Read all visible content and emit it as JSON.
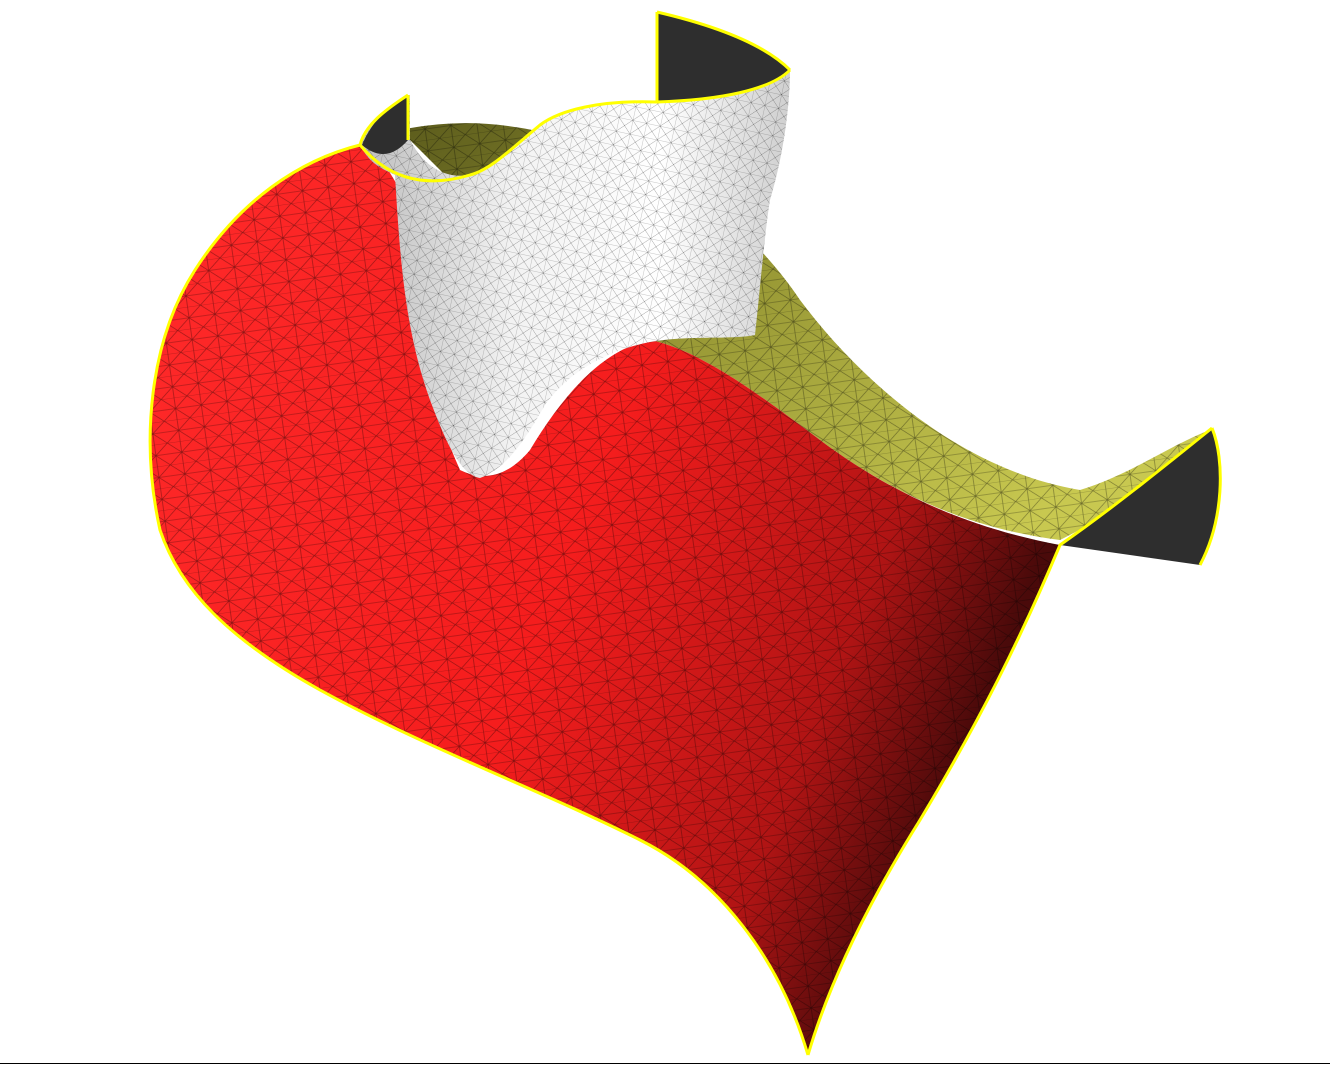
{
  "scene": {
    "background": "#ffffff",
    "surfaces": [
      {
        "name": "red-surface",
        "color": "#ff2020",
        "shade": "#5a0b0b"
      },
      {
        "name": "olive-surface",
        "color": "#8c8c2e",
        "shade": "#2a2a12"
      },
      {
        "name": "white-surface",
        "color": "#f4f4f4",
        "shade": "#b8b8b8"
      }
    ],
    "boundary_color": "#ffff00",
    "mesh_line_color": "#000000",
    "inner_face_color": "#2e2e2e"
  }
}
